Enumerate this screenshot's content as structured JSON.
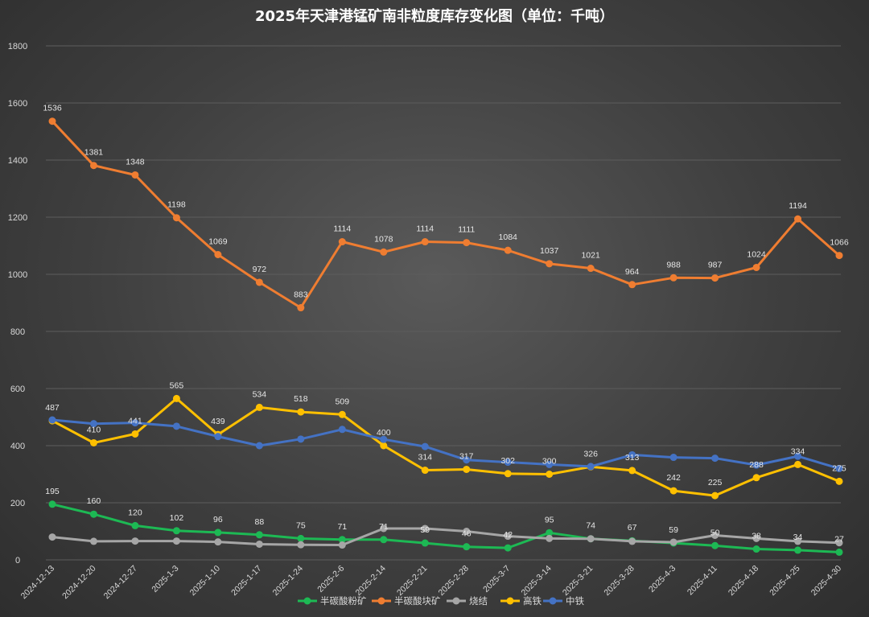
{
  "chart_data": {
    "type": "line",
    "title": "2025年天津港锰矿南非粒度库存变化图（单位：千吨）",
    "xlabel": "",
    "ylabel": "",
    "ylim": [
      0,
      1800
    ],
    "yticks": [
      0,
      200,
      400,
      600,
      800,
      1000,
      1200,
      1400,
      1600,
      1800
    ],
    "grid": true,
    "legend_position": "bottom",
    "categories": [
      "2024-12-13",
      "2024-12-20",
      "2024-12-27",
      "2025-1-3",
      "2025-1-10",
      "2025-1-17",
      "2025-1-24",
      "2025-2-6",
      "2025-2-14",
      "2025-2-21",
      "2025-2-28",
      "2025-3-7",
      "2025-3-14",
      "2025-3-21",
      "2025-3-28",
      "2025-4-3",
      "2025-4-11",
      "2025-4-18",
      "2025-4-25",
      "2025-4-30"
    ],
    "series": [
      {
        "name": "半碳酸粉矿",
        "color": "#1db954",
        "values": [
          195,
          160,
          120,
          102,
          96,
          88,
          75,
          71,
          71,
          59,
          46,
          42,
          95,
          74,
          67,
          59,
          50,
          38,
          34,
          27
        ],
        "labels": [
          "195",
          "160",
          "120",
          "102",
          "96",
          "88",
          "75",
          "71",
          "71",
          "59",
          "46",
          "42",
          "95",
          "74",
          "67",
          "59",
          "50",
          "38",
          "34",
          "27"
        ]
      },
      {
        "name": "半碳酸块矿",
        "color": "#ef7d31",
        "values": [
          1536,
          1381,
          1348,
          1198,
          1069,
          972,
          883,
          1114,
          1078,
          1114,
          1111,
          1084,
          1037,
          1021,
          964,
          988,
          987,
          1024,
          1194,
          1066
        ],
        "labels": [
          "1536",
          "1381",
          "1348",
          "1198",
          "1069",
          "972",
          "883",
          "1114",
          "1078",
          "1114",
          "1111",
          "1084",
          "1037",
          "1021",
          "964",
          "988",
          "987",
          "1024",
          "1194",
          "1066"
        ]
      },
      {
        "name": "烧结",
        "color": "#a6a6a6",
        "values": [
          80,
          65,
          66,
          66,
          63,
          55,
          53,
          52,
          110,
          110,
          100,
          83,
          75,
          74,
          65,
          62,
          86,
          75,
          65,
          60
        ],
        "labels": []
      },
      {
        "name": "高铁",
        "color": "#ffc000",
        "values": [
          487,
          410,
          441,
          565,
          439,
          534,
          518,
          509,
          400,
          314,
          317,
          302,
          300,
          326,
          313,
          242,
          225,
          288,
          334,
          275
        ],
        "labels": [
          "487",
          "410",
          "441",
          "565",
          "439",
          "534",
          "518",
          "509",
          "400",
          "314",
          "317",
          "302",
          "300",
          "326",
          "313",
          "242",
          "225",
          "288",
          "334",
          "275"
        ]
      },
      {
        "name": "中铁",
        "color": "#4472c4",
        "values": [
          490,
          477,
          480,
          468,
          432,
          400,
          423,
          457,
          422,
          397,
          350,
          342,
          334,
          327,
          368,
          359,
          356,
          332,
          363,
          320
        ],
        "labels": []
      }
    ]
  }
}
